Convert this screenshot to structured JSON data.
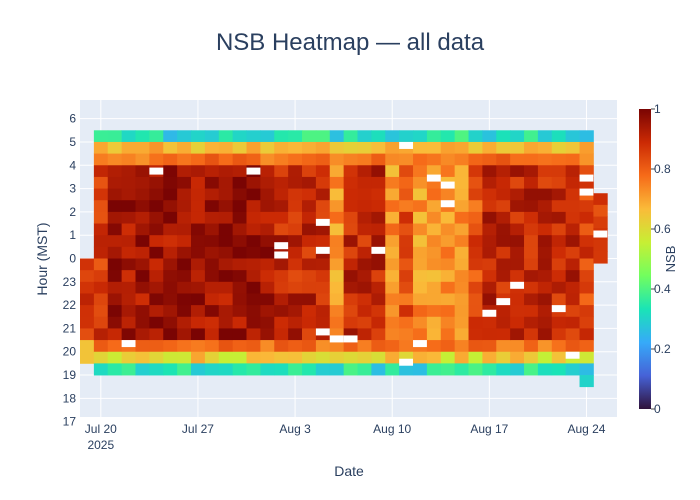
{
  "chart_data": {
    "type": "heatmap",
    "title": "NSB Heatmap — all data",
    "xlabel": "Date",
    "ylabel": "Hour (MST)",
    "colorbar_title": "NSB",
    "colorbar_ticks": [
      "0",
      "0.2",
      "0.4",
      "0.6",
      "0.8",
      "1"
    ],
    "colorbar_range": [
      0,
      1
    ],
    "colorscale": [
      "#30123b",
      "#4662d7",
      "#36aaf9",
      "#1ae4b6",
      "#72fe5e",
      "#c7ef34",
      "#fabb39",
      "#f66b19",
      "#cb2a04",
      "#7a0403"
    ],
    "x_ticks": [
      {
        "label": "Jul 20",
        "sub": "2025",
        "day": 0
      },
      {
        "label": "Jul 27",
        "sub": "",
        "day": 7
      },
      {
        "label": "Aug 3",
        "sub": "",
        "day": 14
      },
      {
        "label": "Aug 10",
        "sub": "",
        "day": 21
      },
      {
        "label": "Aug 17",
        "sub": "",
        "day": 28
      },
      {
        "label": "Aug 24",
        "sub": "",
        "day": 35
      }
    ],
    "x_range_days": [
      -1.5,
      37.2
    ],
    "first_date": "Jul 19",
    "last_date": "Aug 25",
    "y_ticks": [
      "6",
      "5",
      "4",
      "3",
      "2",
      "1",
      "0",
      "23",
      "22",
      "21",
      "20",
      "19",
      "18",
      "17"
    ],
    "grid": true
  },
  "colors": {
    "plot_bg": "#e5ecf6",
    "grid": "#ffffff",
    "text": "#2a3f5f",
    "gap": "#ffffff"
  }
}
